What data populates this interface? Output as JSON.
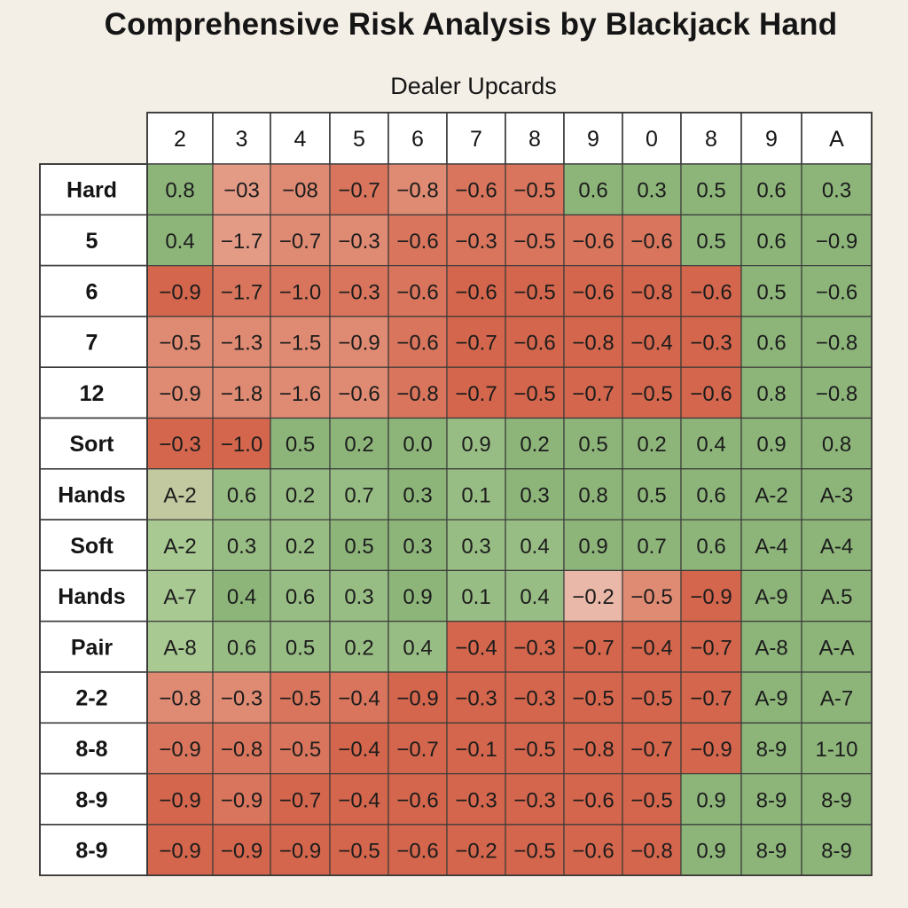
{
  "chart_data": {
    "type": "heatmap",
    "title": "Comprehensive Risk Analysis by Blackjack Hand",
    "column_group_label": "Dealer Upcards",
    "columns": [
      "2",
      "3",
      "4",
      "5",
      "6",
      "7",
      "8",
      "9",
      "0",
      "8",
      "9",
      "A"
    ],
    "rows": [
      "Hard",
      "5",
      "6",
      "7",
      "12",
      "Sort",
      "Hands",
      "Soft",
      "Hands",
      "Pair",
      "2-2",
      "8-8",
      "8-9",
      "8-9"
    ],
    "cells": [
      [
        "0.8",
        "−03",
        "−08",
        "−0.7",
        "−0.8",
        "−0.6",
        "−0.5",
        "0.6",
        "0.3",
        "0.5",
        "0.6",
        "0.3"
      ],
      [
        "0.4",
        "−1.7",
        "−0.7",
        "−0.3",
        "−0.6",
        "−0.3",
        "−0.5",
        "−0.6",
        "−0.6",
        "0.5",
        "0.6",
        "−0.9"
      ],
      [
        "−0.9",
        "−1.7",
        "−1.0",
        "−0.3",
        "−0.6",
        "−0.6",
        "−0.5",
        "−0.6",
        "−0.8",
        "−0.6",
        "0.5",
        "−0.6"
      ],
      [
        "−0.5",
        "−1.3",
        "−1.5",
        "−0.9",
        "−0.6",
        "−0.7",
        "−0.6",
        "−0.8",
        "−0.4",
        "−0.3",
        "0.6",
        "−0.8"
      ],
      [
        "−0.9",
        "−1.8",
        "−1.6",
        "−0.6",
        "−0.8",
        "−0.7",
        "−0.5",
        "−0.7",
        "−0.5",
        "−0.6",
        "0.8",
        "−0.8"
      ],
      [
        "−0.3",
        "−1.0",
        "0.5",
        "0.2",
        "0.0",
        "0.9",
        "0.2",
        "0.5",
        "0.2",
        "0.4",
        "0.9",
        "0.8"
      ],
      [
        "A-2",
        "0.6",
        "0.2",
        "0.7",
        "0.3",
        "0.1",
        "0.3",
        "0.8",
        "0.5",
        "0.6",
        "A-2",
        "A-3"
      ],
      [
        "A-2",
        "0.3",
        "0.2",
        "0.5",
        "0.3",
        "0.3",
        "0.4",
        "0.9",
        "0.7",
        "0.6",
        "A-4",
        "A-4"
      ],
      [
        "A-7",
        "0.4",
        "0.6",
        "0.3",
        "0.9",
        "0.1",
        "0.4",
        "−0.2",
        "−0.5",
        "−0.9",
        "A-9",
        "A.5"
      ],
      [
        "A-8",
        "0.6",
        "0.5",
        "0.2",
        "0.4",
        "−0.4",
        "−0.3",
        "−0.7",
        "−0.4",
        "−0.7",
        "A-8",
        "A-A"
      ],
      [
        "−0.8",
        "−0.3",
        "−0.5",
        "−0.4",
        "−0.9",
        "−0.3",
        "−0.3",
        "−0.5",
        "−0.5",
        "−0.7",
        "A-9",
        "A-7"
      ],
      [
        "−0.9",
        "−0.8",
        "−0.5",
        "−0.4",
        "−0.7",
        "−0.1",
        "−0.5",
        "−0.8",
        "−0.7",
        "−0.9",
        "8-9",
        "1-10"
      ],
      [
        "−0.9",
        "−0.9",
        "−0.7",
        "−0.4",
        "−0.6",
        "−0.3",
        "−0.3",
        "−0.6",
        "−0.5",
        "0.9",
        "8-9",
        "8-9"
      ],
      [
        "−0.9",
        "−0.9",
        "−0.9",
        "−0.5",
        "−0.6",
        "−0.2",
        "−0.5",
        "−0.6",
        "−0.8",
        "0.9",
        "8-9",
        "8-9"
      ]
    ],
    "colors": {
      "background": "#f3eee6",
      "header_fill": "#ffffff",
      "grid": "#3a3a3a",
      "red": [
        "#eab8a8",
        "#e49b86",
        "#df8a72",
        "#d8755c",
        "#d3664c"
      ],
      "green": [
        "#c4d7ad",
        "#a9c992",
        "#98bd84",
        "#8db57a"
      ],
      "olive": "#c2c9a0"
    },
    "cell_tones": [
      [
        "g3",
        "r1",
        "r2",
        "r3",
        "r2",
        "r3",
        "r3",
        "g3",
        "g3",
        "g3",
        "g3",
        "g3"
      ],
      [
        "g3",
        "r1",
        "r2",
        "r2",
        "r3",
        "r3",
        "r3",
        "r3",
        "r3",
        "g3",
        "g3",
        "g3"
      ],
      [
        "r4",
        "r3",
        "r3",
        "r3",
        "r3",
        "r4",
        "r4",
        "r4",
        "r4",
        "r4",
        "g3",
        "g3"
      ],
      [
        "r2",
        "r2",
        "r2",
        "r2",
        "r3",
        "r4",
        "r4",
        "r4",
        "r4",
        "r4",
        "g3",
        "g3"
      ],
      [
        "r2",
        "r2",
        "r2",
        "r2",
        "r3",
        "r4",
        "r4",
        "r4",
        "r4",
        "r4",
        "g3",
        "g3"
      ],
      [
        "r4",
        "r4",
        "g3",
        "g3",
        "g3",
        "g2",
        "g3",
        "g3",
        "g3",
        "g3",
        "g3",
        "g3"
      ],
      [
        "ol",
        "g2",
        "g2",
        "g2",
        "g3",
        "g2",
        "g3",
        "g3",
        "g3",
        "g3",
        "g3",
        "g3"
      ],
      [
        "g1",
        "g2",
        "g2",
        "g3",
        "g3",
        "g2",
        "g2",
        "g3",
        "g3",
        "g3",
        "g3",
        "g3"
      ],
      [
        "g1",
        "g3",
        "g2",
        "g2",
        "g3",
        "g2",
        "g2",
        "r0",
        "r2",
        "r4",
        "g3",
        "g3"
      ],
      [
        "g1",
        "g2",
        "g2",
        "g2",
        "g2",
        "r4",
        "r4",
        "r4",
        "r4",
        "r4",
        "g3",
        "g3"
      ],
      [
        "r2",
        "r2",
        "r3",
        "r3",
        "r4",
        "r4",
        "r4",
        "r4",
        "r4",
        "r4",
        "g3",
        "g3"
      ],
      [
        "r3",
        "r3",
        "r3",
        "r4",
        "r4",
        "r4",
        "r4",
        "r4",
        "r4",
        "r4",
        "g3",
        "g3"
      ],
      [
        "r4",
        "r3",
        "r4",
        "r4",
        "r4",
        "r4",
        "r4",
        "r4",
        "r4",
        "g3",
        "g3",
        "g3"
      ],
      [
        "r4",
        "r4",
        "r4",
        "r4",
        "r4",
        "r4",
        "r4",
        "r4",
        "r4",
        "g3",
        "g3",
        "g3"
      ]
    ]
  }
}
